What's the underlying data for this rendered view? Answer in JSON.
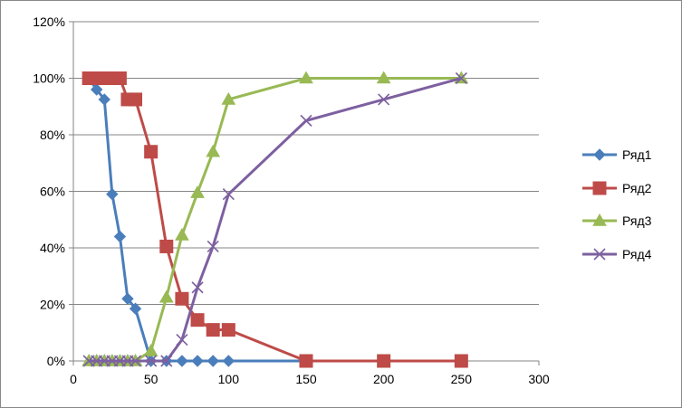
{
  "chart_data": {
    "type": "line",
    "title": "",
    "xlabel": "",
    "ylabel": "",
    "xlim": [
      0,
      300
    ],
    "ylim": [
      0,
      1.2
    ],
    "x_ticks": [
      "0",
      "50",
      "100",
      "150",
      "200",
      "250",
      "300"
    ],
    "y_ticks": [
      "0%",
      "20%",
      "40%",
      "60%",
      "80%",
      "100%",
      "120%"
    ],
    "grid": "horizontal",
    "legend_position": "right",
    "series": [
      {
        "name": "Ряд1",
        "color": "#4a7ebb",
        "marker": "diamond",
        "x": [
          10,
          15,
          20,
          25,
          30,
          35,
          40,
          50,
          60,
          70,
          80,
          90,
          100,
          150,
          200,
          250
        ],
        "y": [
          1.0,
          0.96,
          0.925,
          0.59,
          0.44,
          0.22,
          0.185,
          0.0,
          0.0,
          0.0,
          0.0,
          0.0,
          0.0,
          0.0,
          0.0,
          0.0
        ]
      },
      {
        "name": "Ряд2",
        "color": "#be4b48",
        "marker": "square",
        "x": [
          10,
          15,
          20,
          25,
          30,
          35,
          40,
          50,
          60,
          70,
          80,
          90,
          100,
          150,
          200,
          250
        ],
        "y": [
          1.0,
          1.0,
          1.0,
          1.0,
          1.0,
          0.925,
          0.925,
          0.74,
          0.405,
          0.22,
          0.145,
          0.11,
          0.11,
          0.0,
          0.0,
          0.0
        ]
      },
      {
        "name": "Ряд3",
        "color": "#98b954",
        "marker": "triangle",
        "x": [
          10,
          15,
          20,
          25,
          30,
          35,
          40,
          50,
          60,
          70,
          80,
          90,
          100,
          150,
          200,
          250
        ],
        "y": [
          0.0,
          0.0,
          0.0,
          0.0,
          0.0,
          0.0,
          0.0,
          0.035,
          0.225,
          0.445,
          0.595,
          0.74,
          0.925,
          1.0,
          1.0,
          1.0
        ]
      },
      {
        "name": "Ряд4",
        "color": "#7d60a0",
        "marker": "x",
        "x": [
          10,
          15,
          20,
          25,
          30,
          35,
          40,
          50,
          60,
          70,
          80,
          90,
          100,
          150,
          200,
          250
        ],
        "y": [
          0.0,
          0.0,
          0.0,
          0.0,
          0.0,
          0.0,
          0.0,
          0.0,
          0.0,
          0.075,
          0.26,
          0.405,
          0.59,
          0.85,
          0.925,
          1.0
        ]
      }
    ],
    "legend": [
      "Ряд1",
      "Ряд2",
      "Ряд3",
      "Ряд4"
    ]
  }
}
